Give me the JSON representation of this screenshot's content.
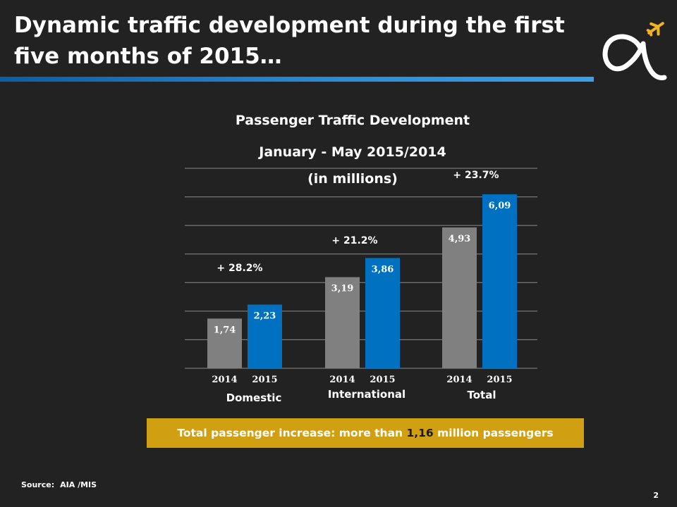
{
  "slide": {
    "title": "Dynamic traffic development during the first five months of 2015…",
    "page_number": "2",
    "source_label": "Source:",
    "source_value": "AIA /MIS"
  },
  "banner": {
    "text_before": "Total passenger increase: more than ",
    "highlight": "1,16",
    "text_after": " million passengers"
  },
  "colors": {
    "background": "#222222",
    "bar_2014": "#808080",
    "bar_2015": "#0070c0",
    "banner": "#d1a012",
    "accent_rule": "#2b8fd8",
    "logo_plane": "#f0b323"
  },
  "chart_data": {
    "type": "bar",
    "title": "Passenger Traffic Development",
    "subtitle": "January - May 2015/2014",
    "unit_label": "(in millions)",
    "ylim": [
      0,
      7
    ],
    "grid": true,
    "groups": [
      {
        "name": "Domestic",
        "growth": "+ 28.2%",
        "bars": [
          {
            "year": "2014",
            "value": 1.74,
            "label": "1,74"
          },
          {
            "year": "2015",
            "value": 2.23,
            "label": "2,23"
          }
        ]
      },
      {
        "name": "International",
        "growth": "+ 21.2%",
        "bars": [
          {
            "year": "2014",
            "value": 3.19,
            "label": "3,19"
          },
          {
            "year": "2015",
            "value": 3.86,
            "label": "3,86"
          }
        ]
      },
      {
        "name": "Total",
        "growth": "+ 23.7%",
        "bars": [
          {
            "year": "2014",
            "value": 4.93,
            "label": "4,93"
          },
          {
            "year": "2015",
            "value": 6.09,
            "label": "6,09"
          }
        ]
      }
    ]
  }
}
